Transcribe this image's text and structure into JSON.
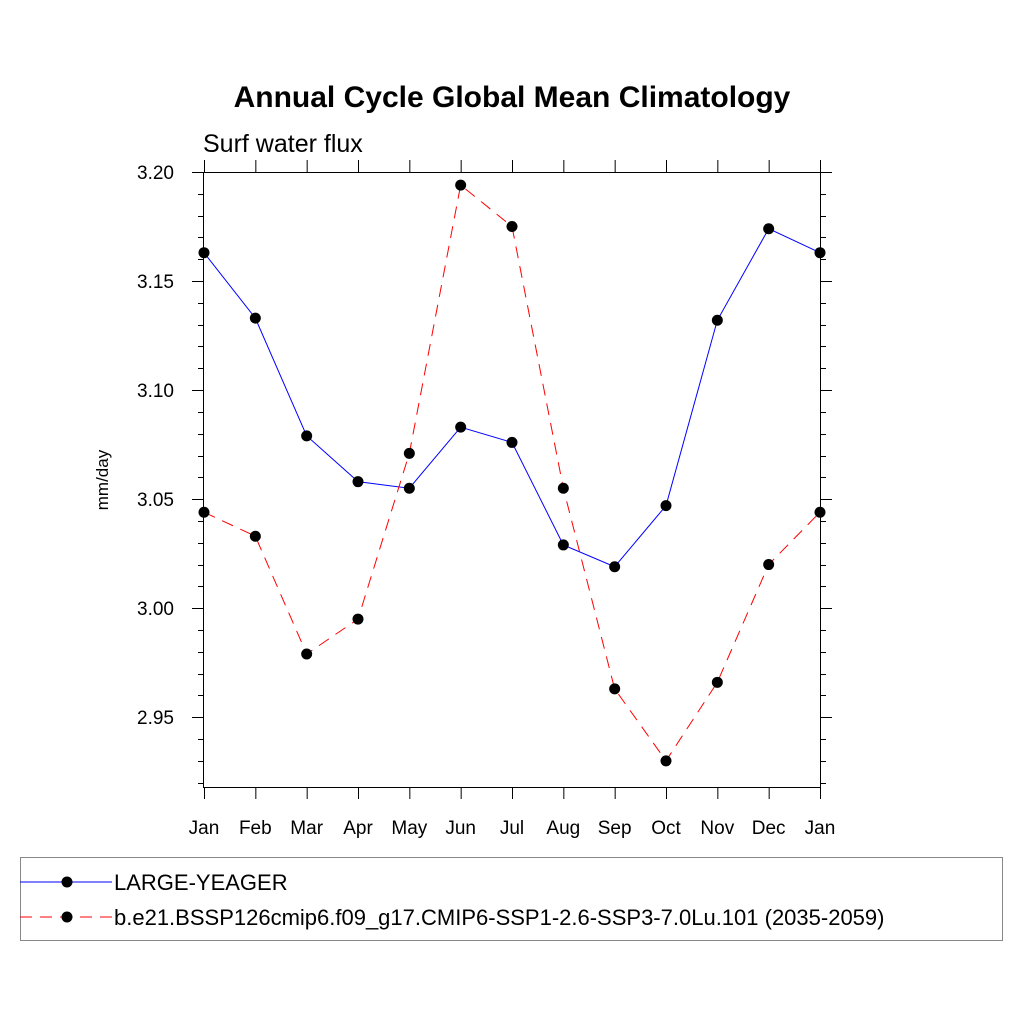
{
  "chart_data": {
    "type": "line",
    "title": "Annual Cycle Global Mean Climatology",
    "subtitle": "Surf water flux",
    "xlabel": "",
    "ylabel": "mm/day",
    "categories": [
      "Jan",
      "Feb",
      "Mar",
      "Apr",
      "May",
      "Jun",
      "Jul",
      "Aug",
      "Sep",
      "Oct",
      "Nov",
      "Dec",
      "Jan"
    ],
    "ylim": [
      2.918,
      3.2
    ],
    "yticks": [
      3.2,
      3.15,
      3.1,
      3.05,
      3.0,
      2.95
    ],
    "ytick_labels": [
      "3.20",
      "3.15",
      "3.10",
      "3.05",
      "3.00",
      "2.95"
    ],
    "grid": false,
    "legend_position": "bottom",
    "series": [
      {
        "name": "LARGE-YEAGER",
        "color": "#0000ff",
        "line_style": "solid",
        "marker": "filled-circle",
        "values": [
          3.163,
          3.133,
          3.079,
          3.058,
          3.055,
          3.083,
          3.076,
          3.029,
          3.019,
          3.047,
          3.132,
          3.174,
          3.163
        ]
      },
      {
        "name": "b.e21.BSSP126cmip6.f09_g17.CMIP6-SSP1-2.6-SSP3-7.0Lu.101 (2035-2059)",
        "color": "#ff0000",
        "line_style": "dashed",
        "marker": "filled-circle",
        "values": [
          3.044,
          3.033,
          2.979,
          2.995,
          3.071,
          3.194,
          3.175,
          3.055,
          2.963,
          2.93,
          2.966,
          3.02,
          3.044
        ]
      }
    ]
  }
}
